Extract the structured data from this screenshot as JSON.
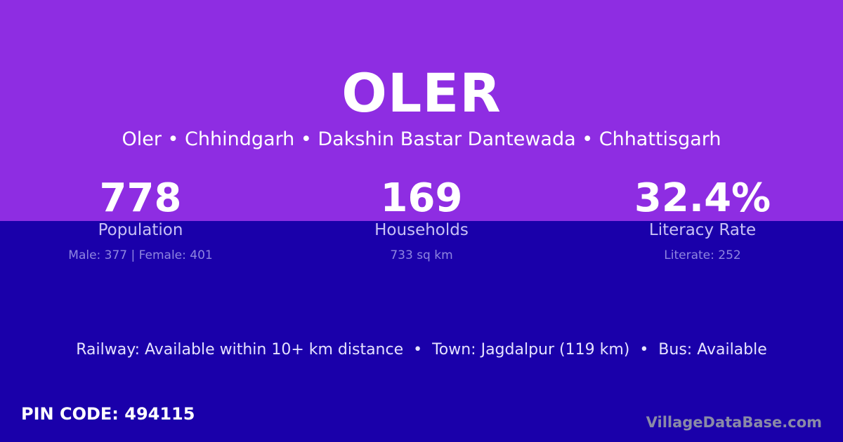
{
  "title": "OLER",
  "breadcrumb": "Oler • Chhindgarh • Dakshin Bastar Dantewada • Chhattisgarh",
  "stats": [
    {
      "value": "778",
      "label": "Population",
      "detail": "Male: 377 | Female: 401"
    },
    {
      "value": "169",
      "label": "Households",
      "detail": "733 sq km"
    },
    {
      "value": "32.4%",
      "label": "Literacy Rate",
      "detail": "Literate: 252"
    }
  ],
  "info": "Railway: Available within 10+ km distance  •  Town: Jagdalpur (119 km)  •  Bus: Available",
  "pin": "PIN CODE: 494115",
  "brand": "VillageDataBase.com",
  "colors": {
    "top": "#8e2de2",
    "bottom": "#1a00aa"
  }
}
